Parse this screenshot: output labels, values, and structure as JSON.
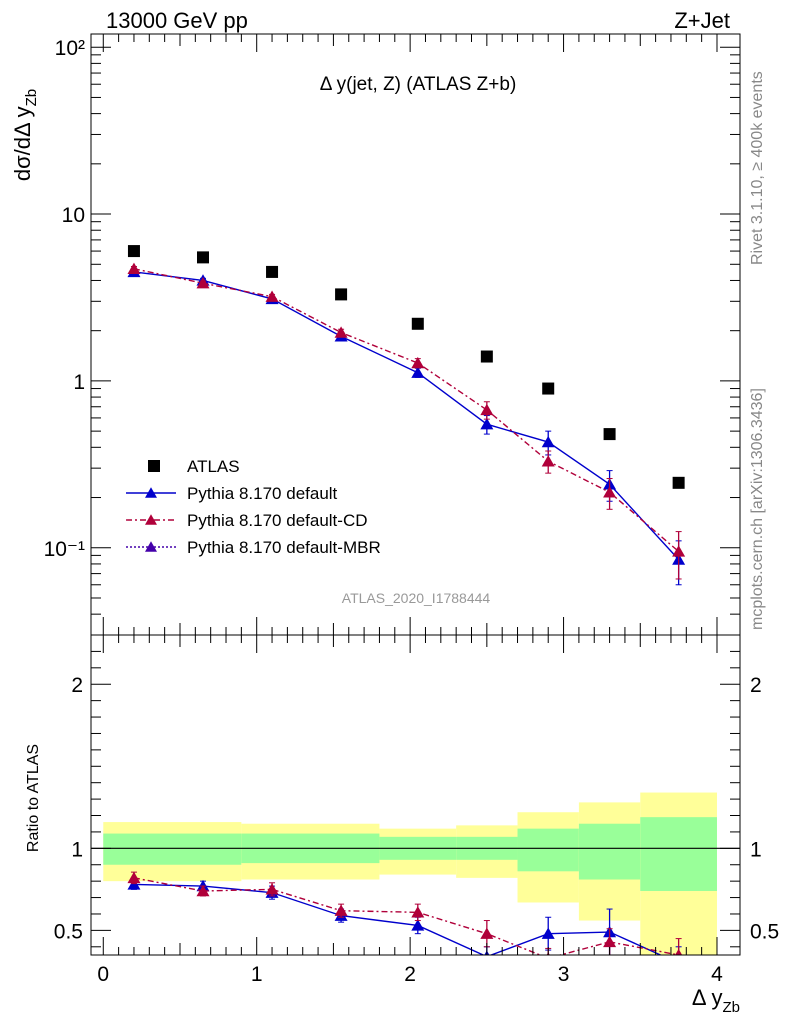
{
  "header": {
    "energy_label": "13000 GeV pp",
    "process_label": "Z+Jet",
    "plot_title": "Δ y(jet, Z) (ATLAS Z+b)",
    "rivet_label": "Rivet 3.1.10, ≥ 400k events",
    "mcplots_label": "mcplots.cern.ch [arXiv:1306.3436]",
    "analysis_label": "ATLAS_2020_I1788444"
  },
  "colors": {
    "data": "#000000",
    "default": "#0000cc",
    "cd": "#b0003a",
    "mbr": "#4400aa",
    "band_inner": "#99ff99",
    "band_outer": "#ffff99"
  },
  "chart_data": [
    {
      "type": "scatter",
      "ylabel": "dσ/dΔ y_Zb",
      "yscale": "log",
      "xlim": [
        -0.08,
        4.15
      ],
      "ylim": [
        0.03,
        120
      ],
      "y_ticks": [
        {
          "value": 0.1,
          "label": "10⁻¹"
        },
        {
          "value": 1,
          "label": "1"
        },
        {
          "value": 10,
          "label": "10"
        },
        {
          "value": 100,
          "label": "10²"
        }
      ],
      "legend_position": "bottom-left",
      "series": [
        {
          "name": "ATLAS",
          "key": "data",
          "marker": "square",
          "x": [
            0.2,
            0.65,
            1.1,
            1.55,
            2.05,
            2.5,
            2.9,
            3.3,
            3.75
          ],
          "y": [
            6.0,
            5.5,
            4.5,
            3.3,
            2.2,
            1.4,
            0.9,
            0.48,
            0.245
          ]
        },
        {
          "name": "Pythia 8.170 default",
          "key": "default",
          "marker": "triangle",
          "line": "solid",
          "x": [
            0.2,
            0.65,
            1.1,
            1.55,
            2.05,
            2.5,
            2.9,
            3.3,
            3.75
          ],
          "y": [
            4.5,
            4.0,
            3.1,
            1.85,
            1.12,
            0.55,
            0.43,
            0.24,
            0.085
          ],
          "err": [
            0.15,
            0.12,
            0.1,
            0.08,
            0.07,
            0.07,
            0.07,
            0.05,
            0.025
          ]
        },
        {
          "name": "Pythia 8.170 default-CD",
          "key": "cd",
          "marker": "triangle",
          "line": "dashdot",
          "x": [
            0.2,
            0.65,
            1.1,
            1.55,
            2.05,
            2.5,
            2.9,
            3.3,
            3.75
          ],
          "y": [
            4.7,
            3.85,
            3.2,
            1.95,
            1.28,
            0.67,
            0.33,
            0.215,
            0.095
          ],
          "err": [
            0.15,
            0.12,
            0.1,
            0.09,
            0.08,
            0.08,
            0.05,
            0.045,
            0.03
          ]
        },
        {
          "name": "Pythia 8.170 default-MBR",
          "key": "mbr",
          "marker": "triangle",
          "line": "dotted",
          "x": [],
          "y": []
        }
      ]
    },
    {
      "type": "line",
      "xlabel": "Δ y_Zb",
      "ylabel": "Ratio to ATLAS",
      "xlim": [
        -0.08,
        4.15
      ],
      "ylim": [
        0.35,
        2.3
      ],
      "x_ticks": [
        0,
        1,
        2,
        3,
        4
      ],
      "y_ticks": [
        0.5,
        1,
        2
      ],
      "bands": {
        "edges": [
          0,
          0.9,
          1.8,
          2.3,
          2.7,
          3.1,
          3.5,
          4
        ],
        "inner_low": [
          0.9,
          0.91,
          0.93,
          0.93,
          0.86,
          0.81,
          0.74
        ],
        "inner_high": [
          1.09,
          1.09,
          1.07,
          1.07,
          1.12,
          1.15,
          1.19
        ],
        "outer_low": [
          0.8,
          0.81,
          0.84,
          0.82,
          0.67,
          0.56,
          0.35
        ],
        "outer_high": [
          1.16,
          1.15,
          1.12,
          1.14,
          1.22,
          1.28,
          1.34
        ]
      },
      "series": [
        {
          "name": "Pythia 8.170 default",
          "key": "default",
          "x": [
            0.2,
            0.65,
            1.1,
            1.55,
            2.05,
            2.5,
            2.9,
            3.3,
            3.75
          ],
          "y": [
            0.78,
            0.77,
            0.73,
            0.59,
            0.53,
            0.34,
            0.48,
            0.49,
            0.3
          ],
          "err": [
            0.03,
            0.03,
            0.04,
            0.04,
            0.05,
            0.06,
            0.1,
            0.14,
            0.1
          ]
        },
        {
          "name": "Pythia 8.170 default-CD",
          "key": "cd",
          "x": [
            0.2,
            0.65,
            1.1,
            1.55,
            2.05,
            2.5,
            2.9,
            3.3,
            3.75
          ],
          "y": [
            0.82,
            0.74,
            0.75,
            0.62,
            0.61,
            0.48,
            0.33,
            0.43,
            0.35
          ],
          "err": [
            0.035,
            0.03,
            0.04,
            0.04,
            0.05,
            0.08,
            0.06,
            0.08,
            0.1
          ]
        }
      ]
    }
  ]
}
